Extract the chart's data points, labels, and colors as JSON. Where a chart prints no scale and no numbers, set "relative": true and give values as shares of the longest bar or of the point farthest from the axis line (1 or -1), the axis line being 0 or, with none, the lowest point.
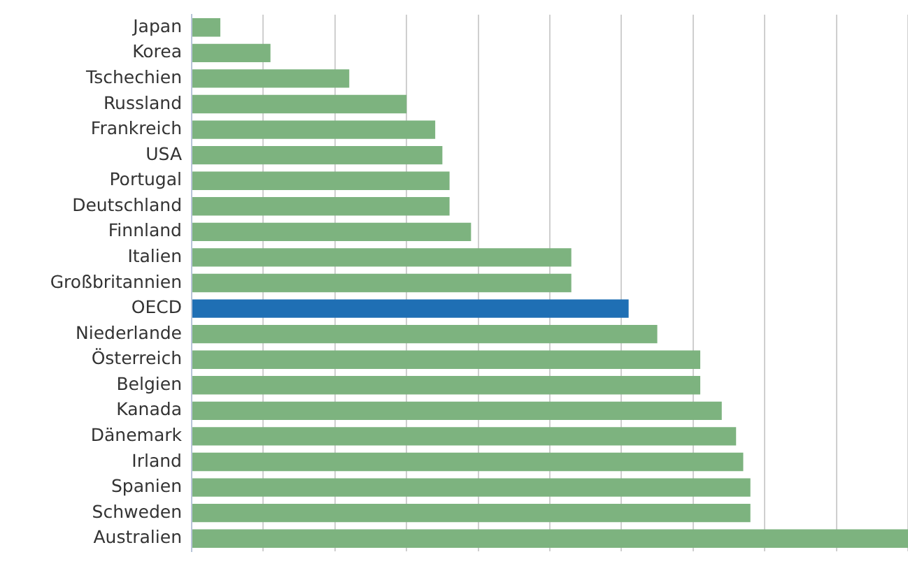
{
  "chart_data": {
    "type": "bar",
    "orientation": "horizontal",
    "relative": true,
    "grid": "x",
    "categories": [
      "Japan",
      "Korea",
      "Tschechien",
      "Russland",
      "Frankreich",
      "USA",
      "Portugal",
      "Deutschland",
      "Finnland",
      "Italien",
      "Großbritannien",
      "OECD",
      "Niederlande",
      "Österreich",
      "Belgien",
      "Kanada",
      "Dänemark",
      "Irland",
      "Spanien",
      "Schweden",
      "Australien"
    ],
    "values": [
      0.04,
      0.11,
      0.22,
      0.3,
      0.34,
      0.35,
      0.36,
      0.36,
      0.39,
      0.53,
      0.53,
      0.61,
      0.65,
      0.71,
      0.71,
      0.74,
      0.76,
      0.77,
      0.78,
      0.78,
      1
    ],
    "colors": [
      "#7db37f",
      "#7db37f",
      "#7db37f",
      "#7db37f",
      "#7db37f",
      "#7db37f",
      "#7db37f",
      "#7db37f",
      "#7db37f",
      "#7db37f",
      "#7db37f",
      "#1f6fb4",
      "#7db37f",
      "#7db37f",
      "#7db37f",
      "#7db37f",
      "#7db37f",
      "#7db37f",
      "#7db37f",
      "#7db37f",
      "#7db37f"
    ]
  }
}
